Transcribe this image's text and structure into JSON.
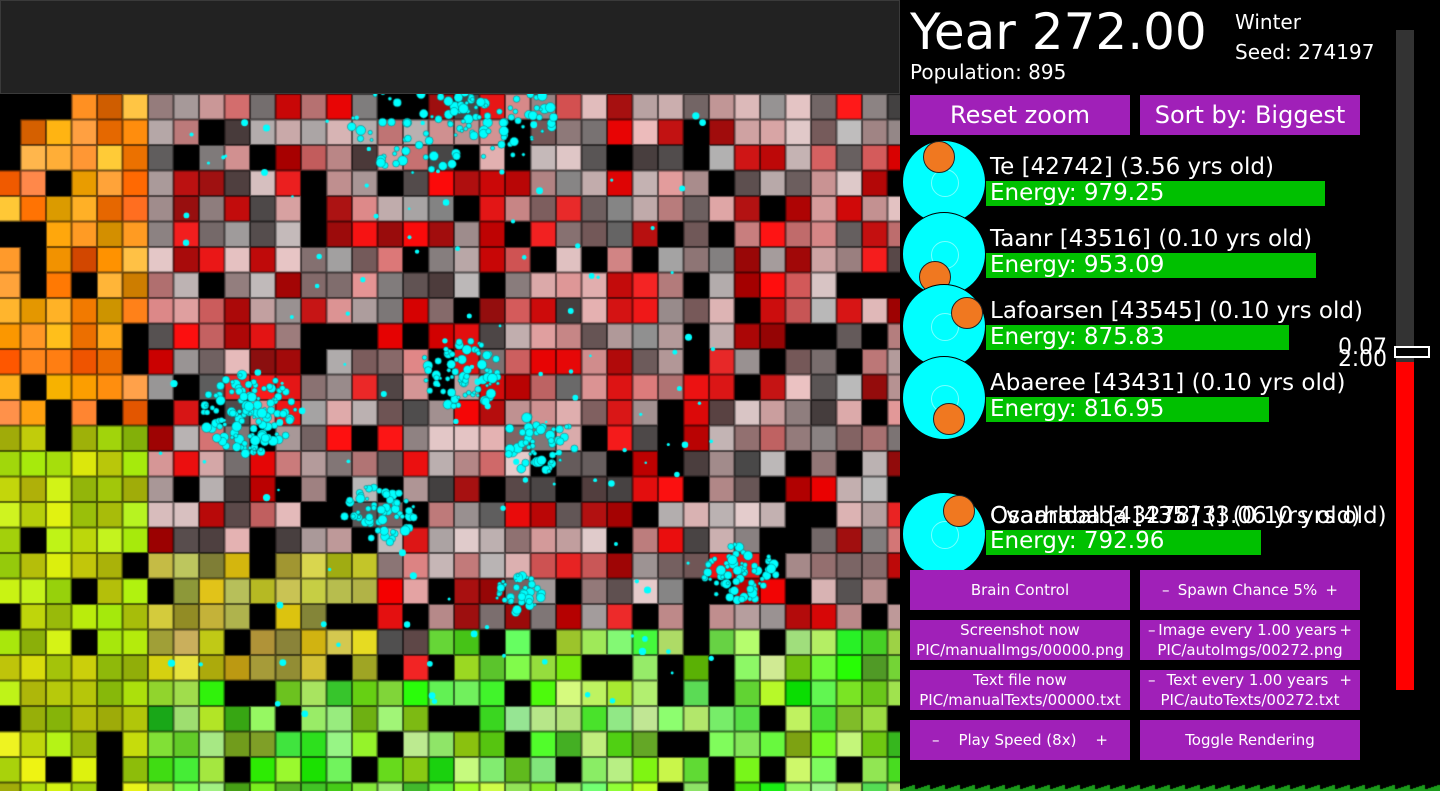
{
  "header": {
    "year": "Year 272.00",
    "season": "Winter",
    "seed": "Seed: 274197",
    "population": "Population: 895"
  },
  "buttons": {
    "reset_zoom": "Reset zoom",
    "sort_by": "Sort by: Biggest",
    "brain_control": "Brain Control",
    "spawn_minus": "–",
    "spawn_label": "Spawn Chance 5%",
    "spawn_plus": "+",
    "screenshot_line1": "Screenshot now",
    "screenshot_line2": "PIC/manualImgs/00000.png",
    "image_minus": "–",
    "image_label": "Image every 1.00 years",
    "image_plus": "+",
    "image_line2": "PIC/autoImgs/00272.png",
    "textfile_line1": "Text file now",
    "textfile_line2": "PIC/manualTexts/00000.txt",
    "text_minus": "–",
    "text_label": "Text every 1.00 years",
    "text_plus": "+",
    "text_line2": "PIC/autoTexts/00272.txt",
    "speed_minus": "–",
    "speed_label": "Play Speed (8x)",
    "speed_plus": "+",
    "toggle_rendering": "Toggle Rendering"
  },
  "creatures": [
    {
      "name": "Te [42742] (3.56 yrs old)",
      "energy": "Energy: 979.25",
      "energy_value": 979.25
    },
    {
      "name": "Taanr [43516] (0.10 yrs old)",
      "energy": "Energy: 953.09",
      "energy_value": 953.09
    },
    {
      "name": "Lafoarsen [43545] (0.10 yrs old)",
      "energy": "Energy: 875.83",
      "energy_value": 875.83
    },
    {
      "name": "Abaeree [43431] (0.10 yrs old)",
      "energy": "Energy: 816.95",
      "energy_value": 816.95
    },
    {
      "name": "Osarhaba [43278] (3.06 yrs old)",
      "energy": "Energy: 792.96",
      "energy_value": 792.96
    },
    {
      "name": "Cvaarloalba [43573] (0.10 yrs old)",
      "energy": "",
      "energy_value": 792.96
    }
  ],
  "slider": {
    "label_top": "0.07",
    "label_bottom": "2.00",
    "level": 0.5
  },
  "colors": {
    "button": "#a020b8",
    "creature_body": "#00ffff",
    "creature_mouth": "#f07820",
    "energy_bar": "#00c000",
    "slider_fill": "#ff0000"
  }
}
